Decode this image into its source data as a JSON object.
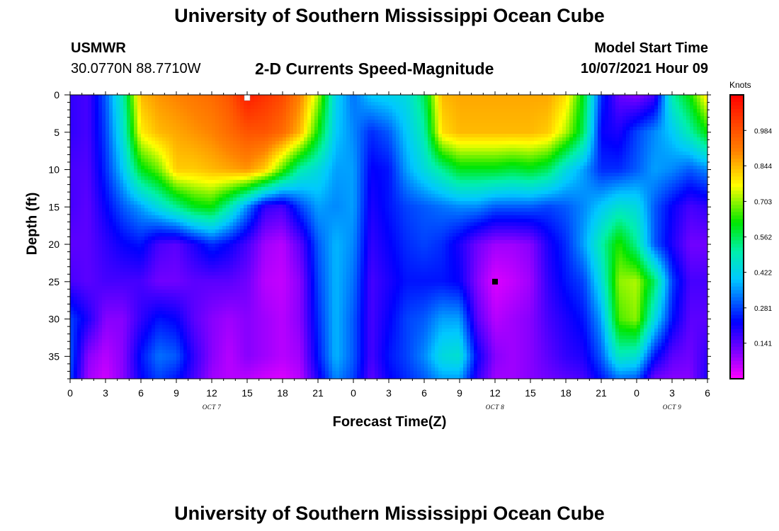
{
  "page_title": "University of Southern Mississippi Ocean Cube",
  "footer_title": "University of Southern Mississippi Ocean Cube",
  "station": {
    "name": "USMWR",
    "coords": "30.0770N  88.7710W"
  },
  "model": {
    "label": "Model Start Time",
    "start": "10/07/2021 Hour 09"
  },
  "chart_data": {
    "type": "heatmap",
    "title": "2-D Currents Speed-Magnitude",
    "xlabel": "Forecast Time(Z)",
    "ylabel": "Depth (ft)",
    "x_ticks": [
      "0",
      "3",
      "6",
      "9",
      "12",
      "15",
      "18",
      "21",
      "0",
      "3",
      "6",
      "9",
      "12",
      "15",
      "18",
      "21",
      "0",
      "3",
      "6"
    ],
    "x_range_hours": [
      0,
      54
    ],
    "date_labels": [
      {
        "text": "OCT 7",
        "hour": 12
      },
      {
        "text": "OCT 8",
        "hour": 36
      },
      {
        "text": "OCT 9",
        "hour": 51
      }
    ],
    "y_ticks": [
      "0",
      "5",
      "10",
      "15",
      "20",
      "25",
      "30",
      "35"
    ],
    "y_range": [
      0,
      38
    ],
    "y_inverted": true,
    "colorbar": {
      "units": "Knots",
      "range": [
        0,
        1.125
      ],
      "tick_labels": [
        "0.984",
        "0.844",
        "0.703",
        "0.562",
        "0.422",
        "0.281",
        "0.141"
      ],
      "tick_values": [
        0.984,
        0.844,
        0.703,
        0.562,
        0.422,
        0.281,
        0.141
      ]
    },
    "markers": [
      {
        "kind": "max",
        "hour": 15,
        "depth": 0.2,
        "color": "#ffffff"
      },
      {
        "kind": "min",
        "hour": 36,
        "depth": 25,
        "color": "#000000"
      }
    ],
    "hours": [
      0,
      1.5,
      3,
      4.5,
      6,
      7.5,
      9,
      10.5,
      12,
      13.5,
      15,
      16.5,
      18,
      19.5,
      21,
      22.5,
      24,
      25.5,
      27,
      28.5,
      30,
      31.5,
      33,
      34.5,
      36,
      37.5,
      39,
      40.5,
      42,
      43.5,
      45,
      46.5,
      48,
      49.5,
      51,
      52.5,
      54
    ],
    "depths": [
      0,
      5,
      10,
      15,
      20,
      25,
      30,
      35,
      38
    ],
    "speeds": [
      [
        0.18,
        0.16,
        0.3,
        0.5,
        0.84,
        0.88,
        0.9,
        0.92,
        0.94,
        0.98,
        1.08,
        1.04,
        1.0,
        0.9,
        0.72,
        0.42,
        0.32,
        0.4,
        0.42,
        0.44,
        0.56,
        0.84,
        0.86,
        0.86,
        0.86,
        0.86,
        0.86,
        0.86,
        0.8,
        0.6,
        0.26,
        0.13,
        0.1,
        0.16,
        0.5,
        0.62,
        0.8
      ],
      [
        0.18,
        0.16,
        0.28,
        0.46,
        0.78,
        0.84,
        0.86,
        0.88,
        0.9,
        0.94,
        0.98,
        0.98,
        0.94,
        0.84,
        0.62,
        0.4,
        0.34,
        0.26,
        0.3,
        0.4,
        0.5,
        0.8,
        0.84,
        0.84,
        0.84,
        0.84,
        0.84,
        0.82,
        0.72,
        0.56,
        0.22,
        0.2,
        0.28,
        0.34,
        0.4,
        0.5,
        0.62
      ],
      [
        0.16,
        0.15,
        0.26,
        0.4,
        0.6,
        0.68,
        0.82,
        0.82,
        0.84,
        0.86,
        0.88,
        0.82,
        0.66,
        0.5,
        0.44,
        0.36,
        0.36,
        0.22,
        0.24,
        0.36,
        0.44,
        0.52,
        0.6,
        0.6,
        0.6,
        0.58,
        0.6,
        0.56,
        0.44,
        0.36,
        0.26,
        0.26,
        0.3,
        0.36,
        0.34,
        0.3,
        0.34
      ],
      [
        0.16,
        0.14,
        0.22,
        0.3,
        0.36,
        0.44,
        0.52,
        0.6,
        0.62,
        0.5,
        0.34,
        0.18,
        0.16,
        0.28,
        0.36,
        0.34,
        0.36,
        0.2,
        0.24,
        0.28,
        0.3,
        0.32,
        0.34,
        0.34,
        0.3,
        0.3,
        0.3,
        0.28,
        0.3,
        0.34,
        0.4,
        0.46,
        0.44,
        0.3,
        0.22,
        0.16,
        0.18
      ],
      [
        0.14,
        0.14,
        0.18,
        0.22,
        0.24,
        0.16,
        0.14,
        0.2,
        0.26,
        0.22,
        0.16,
        0.08,
        0.06,
        0.14,
        0.3,
        0.38,
        0.34,
        0.18,
        0.22,
        0.26,
        0.28,
        0.26,
        0.2,
        0.12,
        0.08,
        0.08,
        0.1,
        0.2,
        0.26,
        0.36,
        0.5,
        0.64,
        0.52,
        0.3,
        0.2,
        0.12,
        0.12
      ],
      [
        0.16,
        0.14,
        0.16,
        0.16,
        0.16,
        0.12,
        0.12,
        0.14,
        0.14,
        0.14,
        0.12,
        0.06,
        0.05,
        0.1,
        0.28,
        0.38,
        0.32,
        0.16,
        0.2,
        0.24,
        0.24,
        0.24,
        0.22,
        0.1,
        0.03,
        0.05,
        0.08,
        0.18,
        0.24,
        0.28,
        0.44,
        0.7,
        0.72,
        0.56,
        0.28,
        0.16,
        0.16
      ],
      [
        0.28,
        0.2,
        0.1,
        0.1,
        0.18,
        0.24,
        0.22,
        0.14,
        0.1,
        0.08,
        0.1,
        0.08,
        0.06,
        0.1,
        0.26,
        0.38,
        0.3,
        0.16,
        0.22,
        0.28,
        0.3,
        0.36,
        0.36,
        0.14,
        0.06,
        0.08,
        0.1,
        0.16,
        0.2,
        0.24,
        0.36,
        0.66,
        0.7,
        0.44,
        0.24,
        0.14,
        0.14
      ],
      [
        0.3,
        0.1,
        0.06,
        0.1,
        0.24,
        0.32,
        0.3,
        0.18,
        0.1,
        0.06,
        0.1,
        0.08,
        0.06,
        0.08,
        0.24,
        0.38,
        0.3,
        0.16,
        0.24,
        0.28,
        0.34,
        0.44,
        0.46,
        0.22,
        0.1,
        0.08,
        0.1,
        0.14,
        0.18,
        0.2,
        0.3,
        0.48,
        0.46,
        0.24,
        0.14,
        0.12,
        0.18
      ],
      [
        0.28,
        0.08,
        0.04,
        0.1,
        0.22,
        0.28,
        0.24,
        0.16,
        0.08,
        0.06,
        0.06,
        0.04,
        0.03,
        0.06,
        0.2,
        0.34,
        0.28,
        0.14,
        0.22,
        0.26,
        0.3,
        0.36,
        0.36,
        0.18,
        0.08,
        0.08,
        0.1,
        0.12,
        0.14,
        0.16,
        0.24,
        0.32,
        0.3,
        0.12,
        0.1,
        0.1,
        0.2
      ]
    ]
  }
}
